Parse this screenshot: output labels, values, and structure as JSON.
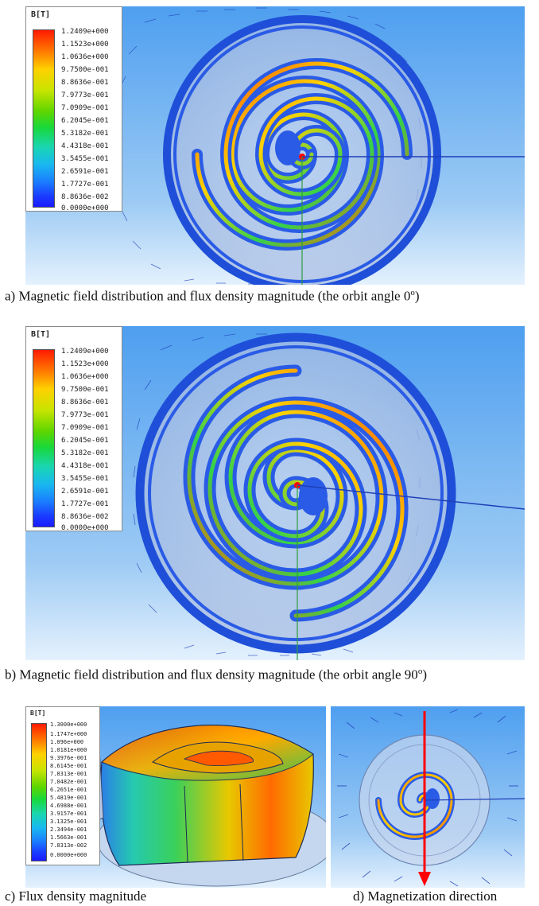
{
  "panel_a": {
    "legend": {
      "title": "B[T]",
      "ticks": [
        "1.2409e+000",
        "1.1523e+000",
        "1.0636e+000",
        "9.7500e-001",
        "8.8636e-001",
        "7.9773e-001",
        "7.0909e-001",
        "6.2045e-001",
        "5.3182e-001",
        "4.4318e-001",
        "3.5455e-001",
        "2.6591e-001",
        "1.7727e-001",
        "8.8636e-002",
        "0.0000e+000"
      ]
    },
    "caption_prefix": "a)  Magnetic field distribution and flux density magnitude (the orbit angle 0",
    "caption_sup": "o",
    "caption_suffix": ")"
  },
  "panel_b": {
    "legend": {
      "title": "B[T]",
      "ticks": [
        "1.2409e+000",
        "1.1523e+000",
        "1.0636e+000",
        "9.7500e-001",
        "8.8636e-001",
        "7.9773e-001",
        "7.0909e-001",
        "6.2045e-001",
        "5.3182e-001",
        "4.4318e-001",
        "3.5455e-001",
        "2.6591e-001",
        "1.7727e-001",
        "8.8636e-002",
        "0.0000e+000"
      ]
    },
    "caption_prefix": "b)  Magnetic field distribution and flux density magnitude (the orbit angle 90",
    "caption_sup": "o",
    "caption_suffix": ")"
  },
  "panel_c": {
    "legend": {
      "title": "B[T]",
      "ticks": [
        "1.3000e+000",
        "1.1747e+000",
        "1.096e+000",
        "1.0181e+000",
        "9.3976e-001",
        "8.6145e-001",
        "7.8313e-001",
        "7.0482e-001",
        "6.2651e-001",
        "5.4819e-001",
        "4.6988e-001",
        "3.9157e-001",
        "3.1325e-001",
        "2.3494e-001",
        "1.5663e-001",
        "7.8313e-002",
        "0.0000e+000"
      ]
    },
    "caption": "c)  Flux density magnitude"
  },
  "panel_d": {
    "caption": "d) Magnetization direction"
  },
  "colors": {
    "background_blue": "#4e9ff0",
    "background_light": "#dbeeff",
    "scroll_body": "#2a5be6",
    "arrow_field": "#1f3fb8",
    "magnetization_arrow": "#ff0000"
  }
}
